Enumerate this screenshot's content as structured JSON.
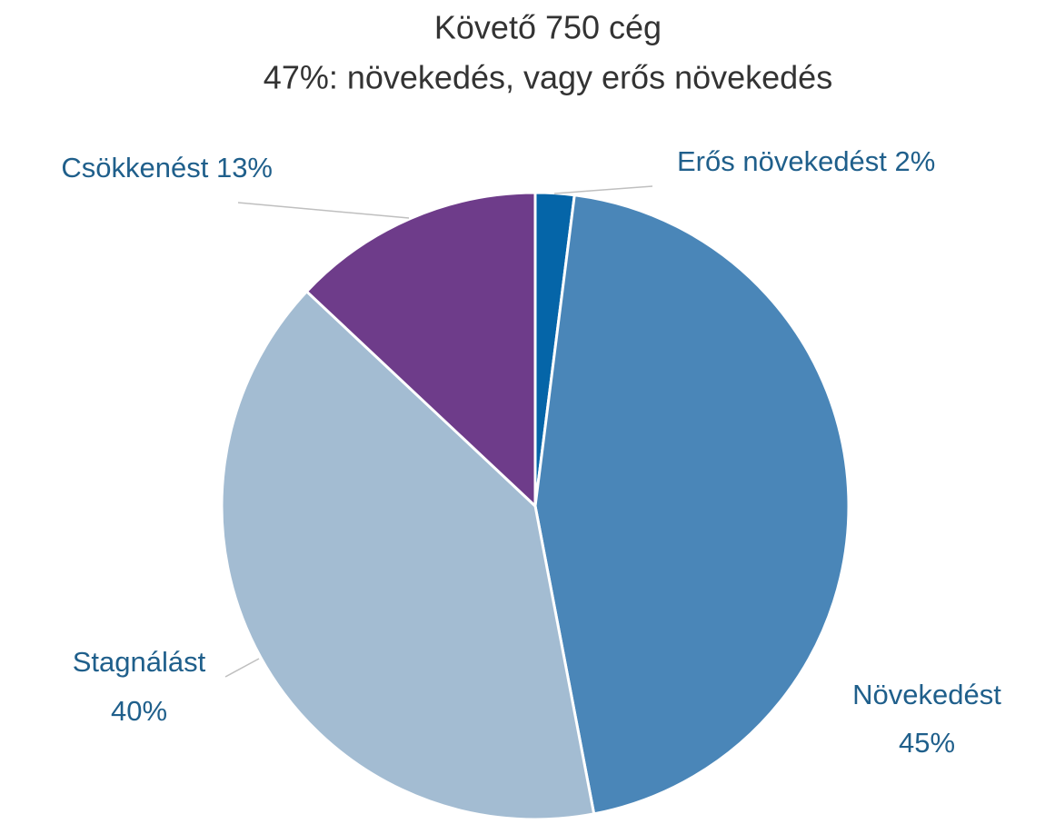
{
  "chart_data": {
    "type": "pie",
    "title": "Követő 750 cég",
    "subtitle": "47%: növekedés, vagy erős növekedés",
    "categories": [
      "Erős növekedést",
      "Növekedést",
      "Stagnálást",
      "Csökkenést"
    ],
    "values": [
      2,
      45,
      40,
      13
    ],
    "value_labels": [
      "2%",
      "45%",
      "40%",
      "13%"
    ],
    "colors": [
      "#0565a8",
      "#4a86b8",
      "#a3bcd2",
      "#6e3c8a"
    ]
  }
}
